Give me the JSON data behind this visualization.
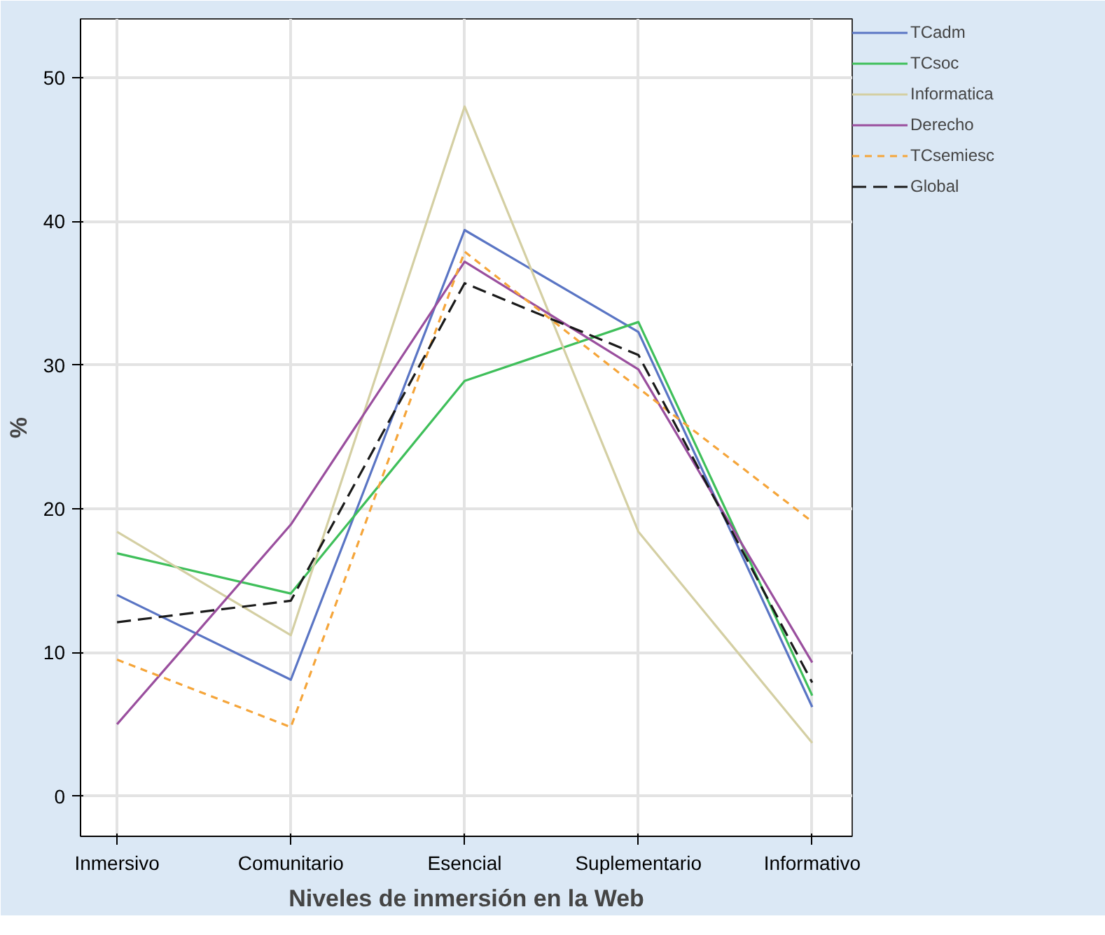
{
  "chart_data": {
    "type": "line",
    "xlabel": "Niveles de inmersión en la Web",
    "ylabel": "%",
    "categories": [
      "Inmersivo",
      "Comunitario",
      "Esencial",
      "Suplementario",
      "Informativo"
    ],
    "series": [
      {
        "name": "TCadm",
        "color": "#5a75c4",
        "line_style": "solid",
        "values": [
          14.0,
          8.1,
          39.4,
          32.3,
          6.2
        ]
      },
      {
        "name": "TCsoc",
        "color": "#3fbf5a",
        "line_style": "solid",
        "values": [
          16.9,
          14.1,
          28.9,
          33.0,
          7.0
        ]
      },
      {
        "name": "Informatica",
        "color": "#d4cfa3",
        "line_style": "solid",
        "values": [
          18.4,
          11.2,
          48.0,
          18.4,
          3.7
        ]
      },
      {
        "name": "Derecho",
        "color": "#9a4f9e",
        "line_style": "solid",
        "values": [
          5.0,
          18.9,
          37.2,
          29.7,
          9.3
        ]
      },
      {
        "name": "TCsemiesc",
        "color": "#f5a53a",
        "line_style": "dotted",
        "values": [
          9.5,
          4.8,
          37.9,
          28.4,
          19.1
        ]
      },
      {
        "name": "Global",
        "color": "#1a1a1a",
        "line_style": "dashed",
        "values": [
          12.1,
          13.6,
          35.7,
          30.7,
          7.9
        ]
      }
    ],
    "ylim": [
      -2.8,
      54.1
    ],
    "yticks": [
      0,
      10,
      20,
      30,
      40,
      50
    ],
    "grid": true,
    "legend": "top right",
    "marker": "none"
  }
}
